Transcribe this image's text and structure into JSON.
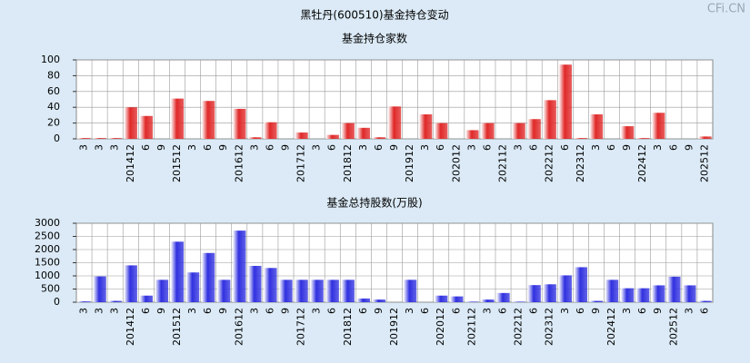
{
  "title": "黑牡丹(600510)基金持仓变动",
  "watermark": "CFi.CN",
  "chart_data": [
    {
      "type": "bar",
      "title": "基金持仓家数",
      "color": "#e02828",
      "grid": true,
      "categories": [
        "3",
        "3",
        "3",
        "201412",
        "6",
        "9",
        "201512",
        "3",
        "6",
        "9",
        "201612",
        "3",
        "6",
        "9",
        "201712",
        "3",
        "6",
        "201812",
        "3",
        "6",
        "9",
        "201912",
        "3",
        "6",
        "202012",
        "3",
        "6",
        "202112",
        "3",
        "6",
        "202212",
        "6",
        "202312",
        "3",
        "6",
        "9",
        "202412",
        "3",
        "6",
        "9",
        "202512"
      ],
      "values": [
        1,
        1,
        1,
        40,
        29,
        0,
        51,
        0,
        48,
        0,
        38,
        2,
        21,
        0,
        8,
        0,
        5,
        20,
        14,
        2,
        41,
        0,
        31,
        20,
        0,
        11,
        20,
        0,
        20,
        25,
        49,
        94,
        1,
        31,
        0,
        16,
        1,
        33,
        0,
        0,
        3
      ],
      "ylim": [
        0,
        100
      ],
      "yticks": [
        0,
        20,
        40,
        60,
        80,
        100
      ]
    },
    {
      "type": "bar",
      "title": "基金总持股数(万股)",
      "color": "#3030e0",
      "grid": true,
      "categories": [
        "3",
        "3",
        "3",
        "201412",
        "6",
        "9",
        "201512",
        "3",
        "6",
        "9",
        "201612",
        "3",
        "6",
        "9",
        "201712",
        "3",
        "6",
        "201812",
        "6",
        "9",
        "201912",
        "3",
        "6",
        "202012",
        "6",
        "202112",
        "3",
        "6",
        "202212",
        "6",
        "202312",
        "3",
        "6",
        "9",
        "202412",
        "3",
        "6",
        "9",
        "202512",
        "3",
        "6"
      ],
      "values": [
        30,
        980,
        50,
        1400,
        250,
        850,
        2300,
        1130,
        1870,
        850,
        2720,
        1380,
        1300,
        850,
        850,
        850,
        850,
        850,
        140,
        100,
        0,
        850,
        0,
        250,
        220,
        20,
        100,
        350,
        20,
        650,
        680,
        1020,
        1330,
        50,
        850,
        530,
        530,
        640,
        970,
        640,
        50
      ],
      "ylim": [
        0,
        3000
      ],
      "yticks": [
        0,
        500,
        1000,
        1500,
        2000,
        2500,
        3000
      ]
    }
  ]
}
